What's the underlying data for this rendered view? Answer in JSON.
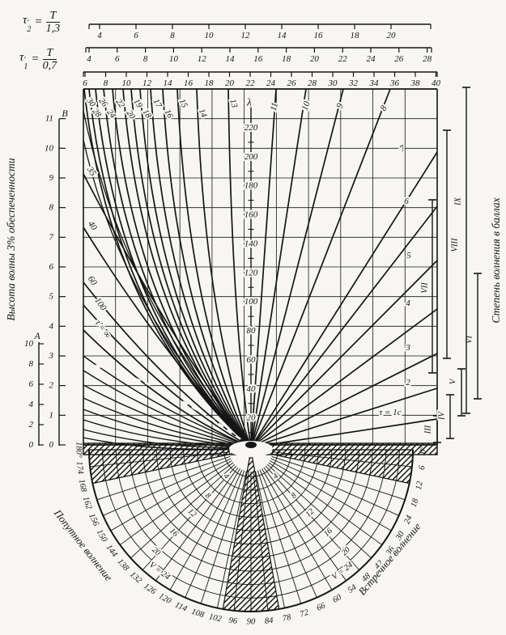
{
  "formulas": {
    "tau2": {
      "base": "τ",
      "sub": "2",
      "prime": "′",
      "eq": "=",
      "num": "T",
      "den": "1,3"
    },
    "tau1": {
      "base": "τ",
      "sub": "1",
      "prime": "′",
      "eq": "=",
      "num": "T",
      "den": "0,7"
    }
  },
  "top_scales": {
    "tau2_labels": [
      "4",
      "6",
      "8",
      "10",
      "12",
      "14",
      "16",
      "18",
      "20"
    ],
    "tau1_labels": [
      "4",
      "6",
      "8",
      "10",
      "12",
      "14",
      "16",
      "18",
      "20",
      "22",
      "24",
      "26",
      "28"
    ],
    "t_labels": [
      "6",
      "8",
      "10",
      "12",
      "14",
      "16",
      "18",
      "20",
      "22",
      "24",
      "26",
      "28",
      "30",
      "32",
      "34",
      "36",
      "38",
      "40"
    ]
  },
  "left_axis": {
    "title": "Высота волны 3% обеспеченности",
    "b_label": "B",
    "b_ticks": [
      "0",
      "1",
      "2",
      "3",
      "4",
      "5",
      "6",
      "7",
      "8",
      "9",
      "10",
      "11"
    ],
    "a_label": "A",
    "a_ticks": [
      "0",
      "2",
      "4",
      "6",
      "8",
      "10"
    ]
  },
  "lambda_axis": {
    "label": "λ",
    "tick_labels": [
      "20",
      "40",
      "60",
      "80",
      "100",
      "120",
      "140",
      "160",
      "180",
      "200",
      "220"
    ]
  },
  "fan": {
    "right_labels": [
      "τ = 1c",
      "2",
      "3",
      "4",
      "5",
      "6",
      "7",
      "8",
      "9",
      "10",
      "11"
    ],
    "top_labels": [
      "13",
      "14",
      "15",
      "16",
      "17",
      "18",
      "19",
      "20",
      "22",
      "24",
      "26",
      "28",
      "30"
    ],
    "left_labels": [
      "35",
      "40",
      "60",
      "100",
      "τ′= ∞"
    ]
  },
  "sea_state": {
    "title": "Степень волнения в баллах",
    "numerals": [
      "III",
      "IV",
      "V",
      "VI",
      "VII",
      "VIII",
      "IX"
    ]
  },
  "polar": {
    "left_title": "Попутное волнение",
    "right_title": "Встречное волнение",
    "rim_labels": [
      "180°",
      "174",
      "168",
      "162",
      "156",
      "150",
      "144",
      "138",
      "132",
      "126",
      "120",
      "114",
      "108",
      "102",
      "96",
      "90",
      "84",
      "78",
      "72",
      "66",
      "60",
      "54",
      "48",
      "42",
      "36",
      "30",
      "24",
      "18",
      "12",
      "6",
      "0°"
    ],
    "arc_labels": [
      "4",
      "8",
      "12",
      "16",
      "20"
    ],
    "v_label": "V = 24"
  },
  "colors": {
    "ink": "#151515",
    "paper": "#f7f6f2"
  }
}
